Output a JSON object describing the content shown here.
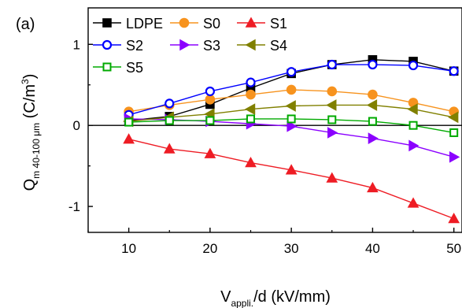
{
  "panel_label": "(a)",
  "chart_data": {
    "type": "line",
    "xlabel": {
      "main": "V",
      "sub": "appli.",
      "rest": "/d (kV/mm)"
    },
    "ylabel": {
      "main": "Q",
      "sub": "m 40-100 μm",
      "rest": " (C/m",
      "sup": "3",
      "end": ")"
    },
    "xlim": [
      5,
      51
    ],
    "ylim": [
      -1.32,
      1.45
    ],
    "x_ticks": [
      10,
      20,
      30,
      40,
      50
    ],
    "x_tick_labels": [
      "10",
      "20",
      "30",
      "40",
      "50"
    ],
    "y_ticks": [
      -1,
      0,
      1
    ],
    "y_tick_labels": [
      "-1",
      "0",
      "1"
    ],
    "zero_line": true,
    "grid": false,
    "legend_position": "top-left",
    "x": [
      10,
      15,
      20,
      25,
      30,
      35,
      40,
      45,
      50
    ],
    "series": [
      {
        "name": "LDPE",
        "color": "#000000",
        "marker": "filled-square",
        "values": [
          0.06,
          0.11,
          0.26,
          0.46,
          0.64,
          0.75,
          0.81,
          0.79,
          0.67
        ]
      },
      {
        "name": "S0",
        "color": "#f7931e",
        "marker": "filled-circle",
        "values": [
          0.17,
          0.25,
          0.32,
          0.38,
          0.44,
          0.42,
          0.38,
          0.28,
          0.17
        ]
      },
      {
        "name": "S1",
        "color": "#ee1c24",
        "marker": "filled-triangle-up",
        "values": [
          -0.17,
          -0.29,
          -0.35,
          -0.46,
          -0.55,
          -0.65,
          -0.77,
          -0.96,
          -1.15
        ]
      },
      {
        "name": "S2",
        "color": "#0000ff",
        "marker": "open-circle",
        "values": [
          0.13,
          0.27,
          0.42,
          0.53,
          0.66,
          0.75,
          0.75,
          0.74,
          0.67
        ]
      },
      {
        "name": "S3",
        "color": "#8b00ff",
        "marker": "filled-triangle-right",
        "values": [
          0.08,
          0.07,
          0.05,
          0.02,
          -0.01,
          -0.09,
          -0.16,
          -0.25,
          -0.39
        ]
      },
      {
        "name": "S4",
        "color": "#808000",
        "marker": "filled-triangle-left",
        "values": [
          0.05,
          0.1,
          0.14,
          0.2,
          0.24,
          0.25,
          0.25,
          0.2,
          0.1
        ]
      },
      {
        "name": "S5",
        "color": "#00aa00",
        "marker": "open-square",
        "values": [
          0.04,
          0.06,
          0.06,
          0.08,
          0.08,
          0.07,
          0.05,
          0.0,
          -0.09
        ]
      }
    ]
  }
}
